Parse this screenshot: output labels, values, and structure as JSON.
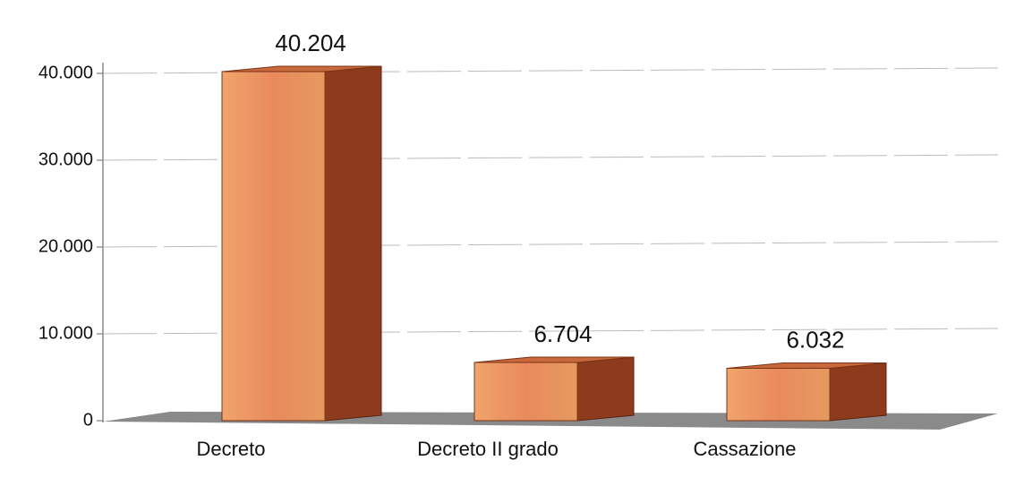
{
  "chart_data": {
    "type": "bar3d",
    "categories": [
      "Decreto",
      "Decreto II grado",
      "Cassazione"
    ],
    "values": [
      40204,
      6704,
      6032
    ],
    "value_labels": [
      "40.204",
      "6.704",
      "6.032"
    ],
    "color": "#e8955c",
    "ylim": [
      0,
      40000
    ],
    "yticks": [
      0,
      {
        "value": 10000,
        "label": "10.000"
      },
      {
        "value": 20000,
        "label": "20.000"
      },
      {
        "value": 30000,
        "label": "30.000"
      },
      {
        "value": 40000,
        "label": "40.000"
      }
    ],
    "grid": true
  }
}
